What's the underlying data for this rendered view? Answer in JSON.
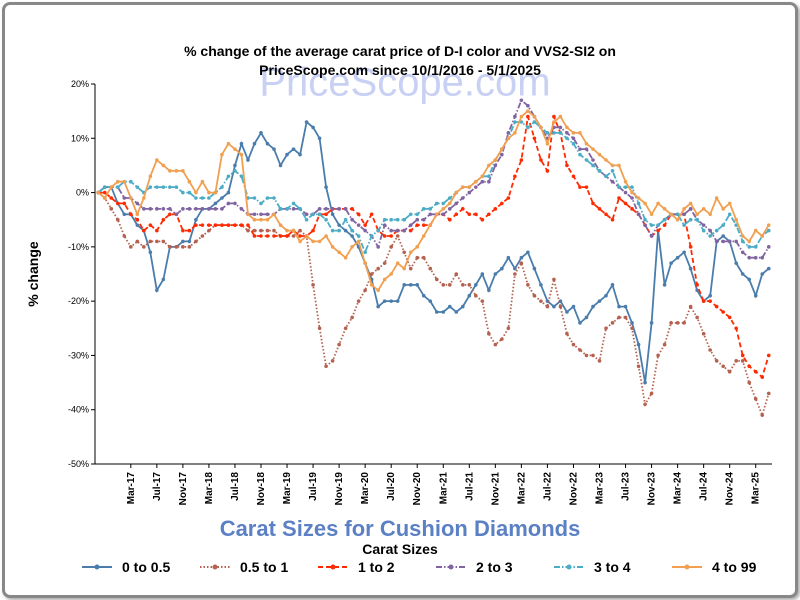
{
  "chart_data": {
    "type": "line",
    "title": [
      "% change of the average carat price of  D-I color and VVS2-SI2  on",
      "PriceScope.com since 10/1/2016 - 5/1/2025"
    ],
    "watermark": "PriceScope.com",
    "x_label": "Carat Sizes for Cushion Diamonds",
    "y_label": "% change",
    "legend_title": "Carat Sizes",
    "legend": "bottom",
    "grid": false,
    "ylim": [
      -50,
      20
    ],
    "yticks": [
      {
        "value": -50,
        "label": "-50%"
      },
      {
        "value": -40,
        "label": "-40%"
      },
      {
        "value": -30,
        "label": "-30%"
      },
      {
        "value": -20,
        "label": "-20%"
      },
      {
        "value": -10,
        "label": "-10%"
      },
      {
        "value": 0,
        "label": "0%"
      },
      {
        "value": 10,
        "label": "10%"
      },
      {
        "value": 20,
        "label": "20%"
      }
    ],
    "categories": [
      null,
      null,
      null,
      null,
      null,
      "Mar-17",
      null,
      null,
      null,
      "Jul-17",
      null,
      null,
      null,
      "Nov-17",
      null,
      null,
      null,
      "Mar-18",
      null,
      null,
      null,
      "Jul-18",
      null,
      null,
      null,
      "Nov-18",
      null,
      null,
      null,
      "Mar-19",
      null,
      null,
      null,
      "Jul-19",
      null,
      null,
      null,
      "Nov-19",
      null,
      null,
      null,
      "Mar-20",
      null,
      null,
      null,
      "Jul-20",
      null,
      null,
      null,
      "Nov-20",
      null,
      null,
      null,
      "Mar-21",
      null,
      null,
      null,
      "Jul-21",
      null,
      null,
      null,
      "Nov-21",
      null,
      null,
      null,
      "Mar-22",
      null,
      null,
      null,
      "Jul-22",
      null,
      null,
      null,
      "Nov-22",
      null,
      null,
      null,
      "Mar-23",
      null,
      null,
      null,
      "Jul-23",
      null,
      null,
      null,
      "Nov-23",
      null,
      null,
      null,
      "Mar-24",
      null,
      null,
      null,
      "Jul-24",
      null,
      null,
      null,
      "Nov-24",
      null,
      null,
      null,
      "Mar-25",
      null,
      null
    ],
    "series": [
      {
        "name": "0 to 0.5",
        "color": "#4a7dac",
        "style": "solid",
        "values": [
          0,
          1,
          1,
          -2,
          -4,
          -4,
          -6,
          -7,
          -11,
          -18,
          -16,
          -10,
          -10,
          -9,
          -9,
          -5,
          -3,
          -3,
          -2,
          -1,
          0,
          5,
          9,
          6,
          9,
          11,
          9,
          8,
          5,
          7,
          8,
          7,
          13,
          12,
          10,
          1,
          -4,
          -6,
          -7,
          -8,
          -10,
          -13,
          -16,
          -21,
          -20,
          -20,
          -20,
          -17,
          -17,
          -17,
          -19,
          -20,
          -22,
          -22,
          -21,
          -22,
          -21,
          -19,
          -17,
          -15,
          -18,
          -15,
          -14,
          -12,
          -14,
          -12,
          -11,
          -14,
          -17,
          -20,
          -21,
          -20,
          -22,
          -21,
          -24,
          -23,
          -21,
          -20,
          -19,
          -17,
          -21,
          -21,
          -24,
          -28,
          -35,
          -24,
          -7,
          -17,
          -13,
          -12,
          -11,
          -14,
          -18,
          -20,
          -19,
          -9,
          -8,
          -9,
          -13,
          -15,
          -16,
          -19,
          -15,
          -14
        ]
      },
      {
        "name": "0.5 to 1",
        "color": "#b5614f",
        "style": "dotted",
        "values": [
          0,
          -1,
          -3,
          -5,
          -8,
          -10,
          -9,
          -10,
          -9,
          -9,
          -9,
          -10,
          -10,
          -10,
          -10,
          -9,
          -8,
          -7,
          -6,
          -6,
          -6,
          -6,
          -6,
          -7,
          -7,
          -7,
          -7,
          -7,
          -8,
          -8,
          -8,
          -7,
          -8,
          -17,
          -25,
          -32,
          -31,
          -28,
          -25,
          -23,
          -20,
          -18,
          -15,
          -14,
          -13,
          -10,
          -8,
          -11,
          -14,
          -12,
          -12,
          -14,
          -16,
          -17,
          -17,
          -15,
          -17,
          -17,
          -19,
          -20,
          -26,
          -28,
          -27,
          -25,
          -15,
          -13,
          -17,
          -19,
          -20,
          -21,
          -16,
          -21,
          -26,
          -28,
          -29,
          -30,
          -30,
          -31,
          -25,
          -24,
          -23,
          -23,
          -25,
          -32,
          -39,
          -37,
          -30,
          -28,
          -24,
          -24,
          -24,
          -21,
          -23,
          -26,
          -29,
          -31,
          -32,
          -33,
          -31,
          -31,
          -35,
          -38,
          -41,
          -37
        ]
      },
      {
        "name": "1 to 2",
        "color": "#ff2a00",
        "style": "dashed",
        "values": [
          0,
          0,
          -1,
          -2,
          -2,
          -4,
          -5,
          -7,
          -6,
          -7,
          -5,
          -4,
          -4,
          -7,
          -7,
          -6,
          -6,
          -6,
          -6,
          -6,
          -6,
          -6,
          -6,
          -6,
          -8,
          -8,
          -8,
          -8,
          -8,
          -8,
          -7,
          -8,
          -8,
          -7,
          -4,
          -4,
          -3,
          -3,
          -3,
          -3,
          -4,
          -6,
          -4,
          -7,
          -8,
          -8,
          -7,
          -7,
          -7,
          -6,
          -6,
          -6,
          -4,
          -4,
          -5,
          -4,
          -3,
          -4,
          -4,
          -5,
          -4,
          -3,
          -2,
          -1,
          3,
          6,
          14,
          10,
          6,
          4,
          14,
          11,
          5,
          3,
          1,
          1,
          -2,
          -3,
          -4,
          -5,
          -1,
          -2,
          -3,
          -4,
          -6,
          -8,
          -7,
          -6,
          -4,
          -4,
          -4,
          -10,
          -17,
          -20,
          -20,
          -21,
          -22,
          -23,
          -25,
          -30,
          -32,
          -33,
          -34,
          -30
        ]
      },
      {
        "name": "2 to 3",
        "color": "#8064a2",
        "style": "dashdot",
        "values": [
          0,
          1,
          1,
          1,
          -1,
          -1,
          -2,
          -3,
          -3,
          -3,
          -3,
          -3,
          -4,
          -3,
          -3,
          -3,
          -3,
          -3,
          -3,
          -3,
          -2,
          -2,
          -3,
          -4,
          -4,
          -4,
          -4,
          -4,
          -3,
          -3,
          -3,
          -3,
          -4,
          -4,
          -3,
          -3,
          -3,
          -3,
          -3,
          -5,
          -6,
          -7,
          -8,
          -10,
          -6,
          -7,
          -7,
          -7,
          -6,
          -5,
          -5,
          -4,
          -4,
          -4,
          -3,
          -2,
          -1,
          0,
          1,
          2,
          2,
          5,
          7,
          11,
          14,
          17,
          16,
          14,
          12,
          10,
          12,
          12,
          11,
          10,
          8,
          8,
          6,
          4,
          3,
          2,
          1,
          0,
          -1,
          -4,
          -6,
          -8,
          -6,
          -5,
          -4,
          -4,
          -4,
          -3,
          -5,
          -6,
          -7,
          -9,
          -9,
          -9,
          -9,
          -11,
          -12,
          -12,
          -12,
          -10
        ]
      },
      {
        "name": "3 to 4",
        "color": "#4bacc6",
        "style": "dashdot",
        "values": [
          0,
          1,
          1,
          1,
          2,
          2,
          1,
          0,
          1,
          1,
          1,
          1,
          1,
          0,
          0,
          -1,
          -1,
          -1,
          0,
          1,
          3,
          4,
          3,
          -1,
          -1,
          -2,
          -1,
          -1,
          -3,
          -3,
          -2,
          -3,
          -5,
          -4,
          -4,
          -5,
          -7,
          -7,
          -5,
          -7,
          -8,
          -11,
          -8,
          -7,
          -5,
          -5,
          -5,
          -5,
          -4,
          -4,
          -3,
          -3,
          -2,
          -2,
          -1,
          0,
          1,
          1,
          2,
          3,
          3,
          6,
          8,
          10,
          13,
          13,
          12,
          13,
          12,
          11,
          11,
          11,
          10,
          9,
          7,
          6,
          5,
          4,
          3,
          4,
          1,
          1,
          1,
          -2,
          -5,
          -6,
          -6,
          -5,
          -4,
          -4,
          -6,
          -5,
          -5,
          -7,
          -8,
          -7,
          -6,
          -4,
          -6,
          -9,
          -10,
          -10,
          -8,
          -7
        ]
      },
      {
        "name": "4 to 99",
        "color": "#f0a050",
        "style": "solid",
        "values": [
          0,
          -1,
          1,
          2,
          2,
          -1,
          -4,
          -1,
          3,
          6,
          5,
          4,
          4,
          4,
          2,
          0,
          2,
          0,
          0,
          7,
          9,
          8,
          7,
          -4,
          -5,
          -5,
          -5,
          -4,
          -6,
          -7,
          -7,
          -9,
          -8,
          -9,
          -9,
          -8,
          -10,
          -11,
          -12,
          -10,
          -9,
          -13,
          -17,
          -18,
          -16,
          -15,
          -13,
          -14,
          -11,
          -10,
          -8,
          -6,
          -4,
          -3,
          -2,
          0,
          1,
          1,
          2,
          3,
          5,
          6,
          8,
          10,
          11,
          14,
          15,
          14,
          12,
          9,
          13,
          14,
          12,
          11,
          11,
          9,
          8,
          7,
          6,
          5,
          5,
          2,
          0,
          -1,
          -2,
          -4,
          -2,
          -3,
          -4,
          -5,
          -3,
          -2,
          -4,
          -3,
          -4,
          -1,
          -3,
          -2,
          -5,
          -8,
          -9,
          -7,
          -8,
          -6
        ]
      }
    ]
  }
}
